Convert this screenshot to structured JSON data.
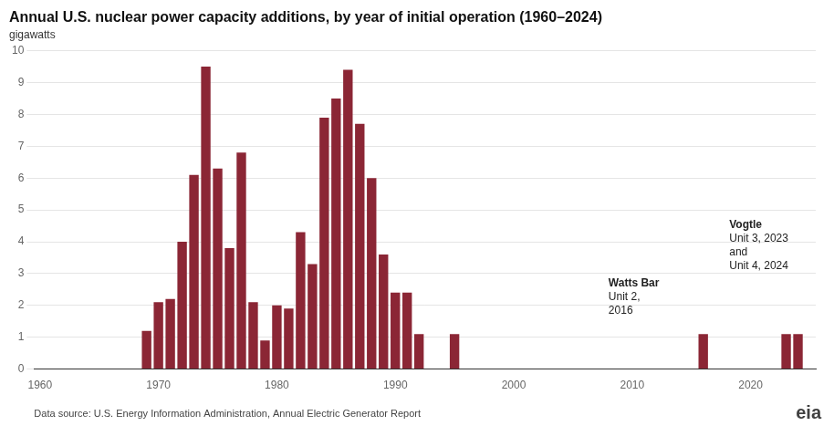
{
  "chart_data": {
    "type": "bar",
    "title": "Annual U.S. nuclear power capacity additions, by year of initial operation (1960–2024)",
    "ylabel": "gigawatts",
    "x": [
      1960,
      1961,
      1962,
      1963,
      1964,
      1965,
      1966,
      1967,
      1968,
      1969,
      1970,
      1971,
      1972,
      1973,
      1974,
      1975,
      1976,
      1977,
      1978,
      1979,
      1980,
      1981,
      1982,
      1983,
      1984,
      1985,
      1986,
      1987,
      1988,
      1989,
      1990,
      1991,
      1992,
      1993,
      1994,
      1995,
      1996,
      1997,
      1998,
      1999,
      2000,
      2001,
      2002,
      2003,
      2004,
      2005,
      2006,
      2007,
      2008,
      2009,
      2010,
      2011,
      2012,
      2013,
      2014,
      2015,
      2016,
      2017,
      2018,
      2019,
      2020,
      2021,
      2022,
      2023,
      2024
    ],
    "values": [
      0,
      0,
      0,
      0,
      0,
      0,
      0,
      0,
      0,
      1.2,
      2.1,
      2.2,
      4.0,
      6.1,
      9.5,
      6.3,
      3.8,
      6.8,
      2.1,
      0.9,
      2.0,
      1.9,
      4.3,
      3.3,
      7.9,
      8.5,
      9.4,
      7.7,
      6.0,
      3.6,
      2.4,
      2.4,
      1.1,
      0,
      0,
      1.1,
      0,
      0,
      0,
      0,
      0,
      0,
      0,
      0,
      0,
      0,
      0,
      0,
      0,
      0,
      0,
      0,
      0,
      0,
      0,
      0,
      1.1,
      0,
      0,
      0,
      0,
      0,
      0,
      1.1,
      1.1
    ],
    "color": "#8B2635",
    "xlim": [
      1959.5,
      2025.5
    ],
    "xticks": [
      1960,
      1970,
      1980,
      1990,
      2000,
      2010,
      2020
    ],
    "ylim": [
      0,
      10
    ],
    "yticks": [
      0,
      1,
      2,
      3,
      4,
      5,
      6,
      7,
      8,
      9,
      10
    ],
    "grid": true,
    "annotations": [
      {
        "x": 2008.0,
        "y": 2.85,
        "lines": [
          "Watts Bar",
          "Unit 2,",
          "2016"
        ]
      },
      {
        "x": 2018.2,
        "y": 4.7,
        "lines": [
          "Vogtle",
          "Unit 3, 2023",
          "and",
          "Unit 4, 2024"
        ]
      }
    ],
    "footnote": "Data source: U.S. Energy Information Administration, Annual Electric Generator Report",
    "credit": "eia"
  }
}
